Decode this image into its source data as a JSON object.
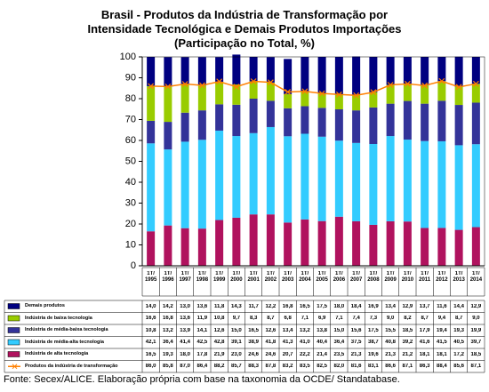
{
  "chart_data": {
    "type": "bar",
    "stacked": true,
    "title": "Brasil - Produtos da Indústria de Transformação por",
    "subtitle": "Intensidade Tecnológica e Demais Produtos Importações",
    "subtitle2": "(Participação no Total, %)",
    "source": "Fonte: Secex/ALICE. Elaboração própria com base na taxonomia da OCDE/ Standatabase.",
    "categories": [
      "1T/ 1995",
      "1T/ 1996",
      "1T/ 1997",
      "1T/ 1998",
      "1T/ 1999",
      "1T/ 2000",
      "1T/ 2001",
      "1T/ 2002",
      "1T/ 2003",
      "1T/ 2004",
      "1T/ 2005",
      "1T/ 2006",
      "1T/ 2007",
      "1T/ 2008",
      "1T/ 2009",
      "1T/ 2010",
      "1T/ 2011",
      "1T/ 2012",
      "1T/ 2013",
      "1T/ 2014"
    ],
    "ylim": [
      0,
      100
    ],
    "yticks": [
      0,
      10,
      20,
      30,
      40,
      50,
      60,
      70,
      80,
      90,
      100
    ],
    "grid": false,
    "series": [
      {
        "name": "Demais produtos",
        "color": "#000080",
        "values": [
          14.0,
          14.2,
          13.0,
          13.6,
          11.8,
          14.3,
          11.7,
          12.2,
          16.8,
          16.5,
          17.5,
          18.0,
          18.4,
          16.9,
          13.4,
          12.9,
          13.7,
          11.6,
          14.4,
          12.9
        ],
        "value_labels": [
          "14,0",
          "14,2",
          "13,0",
          "13,6",
          "11,8",
          "14,3",
          "11,7",
          "12,2",
          "16,8",
          "16,5",
          "17,5",
          "18,0",
          "18,4",
          "16,9",
          "13,4",
          "12,9",
          "13,7",
          "11,6",
          "14,4",
          "12,9"
        ]
      },
      {
        "name": "Indústria de baixa tecnologia",
        "color": "#99cc00",
        "values": [
          16.6,
          16.8,
          13.6,
          11.9,
          10.8,
          9.7,
          8.3,
          8.7,
          6.8,
          7.1,
          6.9,
          7.1,
          7.4,
          7.3,
          9.0,
          8.2,
          8.7,
          9.4,
          8.7,
          9.0
        ],
        "value_labels": [
          "16,6",
          "16,8",
          "13,6",
          "11,9",
          "10,8",
          "9,7",
          "8,3",
          "8,7",
          "6,8",
          "7,1",
          "6,9",
          "7,1",
          "7,4",
          "7,3",
          "9,0",
          "8,2",
          "8,7",
          "9,4",
          "8,7",
          "9,0"
        ]
      },
      {
        "name": "Indústria de média-baixa tecnologia",
        "color": "#333399",
        "values": [
          10.8,
          13.2,
          13.9,
          14.1,
          12.6,
          15.0,
          16.5,
          12.6,
          13.4,
          13.2,
          13.8,
          15.0,
          15.6,
          17.5,
          15.5,
          18.5,
          17.9,
          19.4,
          19.3,
          19.9
        ],
        "value_labels": [
          "10,8",
          "13,2",
          "13,9",
          "14,1",
          "12,6",
          "15,0",
          "16,5",
          "12,6",
          "13,4",
          "13,2",
          "13,8",
          "15,0",
          "15,6",
          "17,5",
          "15,5",
          "18,5",
          "17,9",
          "19,4",
          "19,3",
          "19,9"
        ]
      },
      {
        "name": "Indústria de média-alta tecnologia",
        "color": "#33ccff",
        "values": [
          42.1,
          36.4,
          41.4,
          42.5,
          42.8,
          39.1,
          38.9,
          41.8,
          41.3,
          41.0,
          40.4,
          36.4,
          37.5,
          38.7,
          40.8,
          39.2,
          41.6,
          41.5,
          40.5,
          39.7
        ],
        "value_labels": [
          "42,1",
          "36,4",
          "41,4",
          "42,5",
          "42,8",
          "39,1",
          "38,9",
          "41,8",
          "41,3",
          "41,0",
          "40,4",
          "36,4",
          "37,5",
          "38,7",
          "40,8",
          "39,2",
          "41,6",
          "41,5",
          "40,5",
          "39,7"
        ]
      },
      {
        "name": "Indústria de alta tecnologia",
        "color": "#b0125e",
        "values": [
          16.5,
          19.3,
          18.0,
          17.8,
          21.9,
          23.0,
          24.6,
          24.6,
          20.7,
          22.2,
          21.4,
          23.5,
          21.3,
          19.6,
          21.3,
          21.2,
          18.1,
          18.1,
          17.2,
          18.5
        ],
        "value_labels": [
          "16,5",
          "19,3",
          "18,0",
          "17,8",
          "21,9",
          "23,0",
          "24,6",
          "24,6",
          "20,7",
          "22,2",
          "21,4",
          "23,5",
          "21,3",
          "19,6",
          "21,3",
          "21,2",
          "18,1",
          "18,1",
          "17,2",
          "18,5"
        ]
      },
      {
        "name": "Produtos da indústria de transformação",
        "color": "#ff8000",
        "type": "line",
        "values": [
          86.0,
          85.8,
          87.0,
          86.4,
          88.2,
          85.7,
          88.3,
          87.8,
          83.2,
          83.5,
          82.5,
          82.0,
          81.6,
          83.1,
          86.6,
          87.1,
          86.3,
          88.4,
          85.6,
          87.1
        ],
        "value_labels": [
          "86,0",
          "85,8",
          "87,0",
          "86,4",
          "88,2",
          "85,7",
          "88,3",
          "87,8",
          "83,2",
          "83,5",
          "82,5",
          "82,0",
          "81,6",
          "83,1",
          "86,6",
          "87,1",
          "86,3",
          "88,4",
          "85,6",
          "87,1"
        ]
      }
    ]
  }
}
